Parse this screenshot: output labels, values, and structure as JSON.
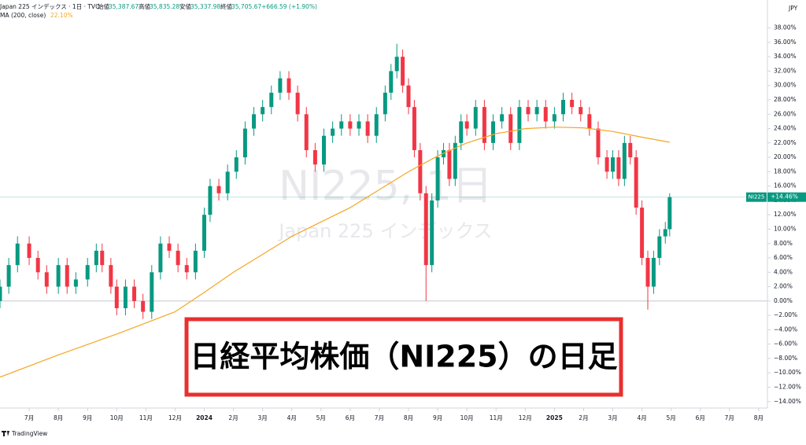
{
  "chart_data": {
    "type": "candlestick",
    "header": {
      "symbol": "Japan 225 インデックス · 1日 · TVC",
      "open_label": "始値",
      "open": "35,387.67",
      "high_label": "高値",
      "high": "35,835.28",
      "low_label": "安値",
      "low": "35,337.98",
      "close_label": "終値",
      "close": "35,705.67",
      "change": "+666.59 (+1.90%)"
    },
    "indicator": {
      "name": "MA (200, close)",
      "value_label": "22.10%",
      "color": "#f5a623",
      "x": [
        0,
        2,
        4,
        6,
        7,
        8,
        9,
        10,
        11,
        12,
        13,
        14,
        15,
        16,
        17,
        18,
        19,
        20,
        21,
        22,
        22.95
      ],
      "values": [
        -10.6,
        -7.5,
        -4.6,
        -1.5,
        1.2,
        4,
        6.5,
        9,
        11,
        13,
        15.5,
        18,
        20.2,
        22,
        23.3,
        24,
        24.2,
        24.1,
        23.6,
        22.8,
        22.1
      ]
    },
    "watermark": "NI225, 1日",
    "watermark_sub": "Japan 225 インデックス",
    "currency": "JPY",
    "price_tag": {
      "name": "NI225",
      "label": "+14.46%",
      "value": 14.46,
      "color": "#089981"
    },
    "banner": "日経平均株価（NI225）の日足",
    "brand": "TradingView",
    "up_color": "#089981",
    "down_color": "#f23645",
    "x": [
      0,
      0.3,
      0.6,
      1,
      1.3,
      1.6,
      2,
      2.3,
      2.6,
      3,
      3.3,
      3.5,
      3.8,
      4,
      4.3,
      4.6,
      4.9,
      5.2,
      5.5,
      5.8,
      6.1,
      6.4,
      6.7,
      7,
      7.2,
      7.5,
      7.8,
      8.1,
      8.4,
      8.7,
      9,
      9.3,
      9.6,
      9.9,
      10.2,
      10.5,
      10.8,
      11.1,
      11.4,
      11.7,
      12,
      12.3,
      12.6,
      12.9,
      13.2,
      13.4,
      13.6,
      13.8,
      14,
      14.2,
      14.4,
      14.6,
      14.8,
      15,
      15.2,
      15.4,
      15.6,
      15.8,
      16,
      16.3,
      16.6,
      16.9,
      17.2,
      17.5,
      17.8,
      18.1,
      18.4,
      18.7,
      19,
      19.3,
      19.6,
      19.9,
      20.2,
      20.5,
      20.8,
      21,
      21.2,
      21.4,
      21.6,
      21.8,
      22,
      22.2,
      22.4,
      22.6,
      22.8,
      22.95
    ],
    "open": [
      0,
      2,
      5,
      8,
      6,
      4,
      2,
      5,
      2,
      3,
      5,
      7,
      5,
      2,
      -1,
      2,
      0,
      -1.5,
      4,
      8,
      7,
      5,
      4,
      7,
      12,
      16,
      15,
      18,
      20,
      24,
      26,
      27,
      29,
      31,
      29,
      26,
      21,
      19,
      23,
      24,
      25,
      24,
      25,
      23,
      26,
      29,
      32,
      34,
      30,
      27,
      21,
      15,
      5,
      14,
      20,
      21,
      17,
      22,
      25,
      24,
      27,
      22,
      25,
      26,
      22,
      27,
      26,
      27,
      25,
      26,
      28,
      27,
      26,
      24,
      20,
      18,
      20,
      17,
      22,
      20,
      13,
      6,
      2,
      6,
      9,
      10
    ],
    "high": [
      3,
      6,
      9,
      9,
      7,
      5,
      6,
      6,
      4,
      6,
      8,
      8,
      6,
      3,
      3,
      3,
      1,
      5,
      9,
      9,
      8,
      6,
      8,
      13,
      17,
      17,
      19,
      21,
      25,
      27,
      28,
      30,
      32,
      32,
      30,
      27,
      22,
      24,
      25,
      26,
      26,
      26,
      26,
      27,
      30,
      33,
      35.8,
      35,
      31,
      28,
      22,
      16,
      15,
      21,
      22,
      22,
      23,
      26,
      26,
      28,
      28,
      26,
      27,
      27,
      28,
      28,
      28,
      28,
      27,
      29,
      29,
      28,
      27,
      25,
      21,
      21,
      21,
      23,
      23,
      21,
      14,
      7,
      7,
      10,
      11,
      15
    ],
    "low": [
      -1,
      1,
      4,
      5,
      3,
      1,
      1,
      1,
      1,
      2,
      4,
      4,
      1,
      -2,
      -2,
      -1,
      -2.5,
      -2.5,
      3,
      6,
      4,
      3,
      3,
      6,
      11,
      14,
      14,
      17,
      19,
      23,
      25,
      26,
      28,
      28,
      25,
      20,
      18,
      18,
      22,
      23,
      23,
      23,
      22,
      22,
      25,
      28,
      31,
      29,
      26,
      20,
      14,
      0,
      4,
      13,
      19,
      16,
      16,
      21,
      23,
      23,
      21,
      21,
      24,
      21,
      21,
      25,
      25,
      24,
      24,
      25,
      26,
      25,
      23,
      19,
      17,
      17,
      16,
      16,
      19,
      12,
      5,
      -1.2,
      1,
      5,
      8,
      9
    ],
    "close": [
      2,
      5,
      8,
      6,
      4,
      2,
      5,
      2,
      3,
      5,
      7,
      5,
      2,
      -1,
      2,
      0,
      -1.5,
      4,
      8,
      7,
      5,
      4,
      7,
      12,
      16,
      15,
      18,
      20,
      24,
      26,
      27,
      29,
      31,
      29,
      26,
      21,
      19,
      23,
      24,
      25,
      24,
      25,
      23,
      26,
      29,
      32,
      34,
      30,
      27,
      21,
      15,
      5,
      14,
      20,
      21,
      17,
      22,
      25,
      24,
      27,
      22,
      25,
      26,
      22,
      27,
      26,
      27,
      25,
      26,
      28,
      27,
      26,
      24,
      20,
      18,
      20,
      17,
      22,
      20,
      13,
      6,
      2,
      6,
      9,
      10,
      14.46
    ],
    "xlim": [
      0,
      26.3
    ],
    "xticks": [
      {
        "value": 1,
        "label": "7月"
      },
      {
        "value": 2,
        "label": "8月"
      },
      {
        "value": 3,
        "label": "9月"
      },
      {
        "value": 4,
        "label": "10月"
      },
      {
        "value": 5,
        "label": "11月"
      },
      {
        "value": 6,
        "label": "12月"
      },
      {
        "value": 7,
        "label": "2024"
      },
      {
        "value": 8,
        "label": "2月"
      },
      {
        "value": 9,
        "label": "3月"
      },
      {
        "value": 10,
        "label": "4月"
      },
      {
        "value": 11,
        "label": "5月"
      },
      {
        "value": 12,
        "label": "6月"
      },
      {
        "value": 13,
        "label": "7月"
      },
      {
        "value": 14,
        "label": "8月"
      },
      {
        "value": 15,
        "label": "9月"
      },
      {
        "value": 16,
        "label": "10月"
      },
      {
        "value": 17,
        "label": "11月"
      },
      {
        "value": 18,
        "label": "12月"
      },
      {
        "value": 19,
        "label": "2025"
      },
      {
        "value": 20,
        "label": "2月"
      },
      {
        "value": 21,
        "label": "3月"
      },
      {
        "value": 22,
        "label": "4月"
      },
      {
        "value": 23,
        "label": "5月"
      },
      {
        "value": 24,
        "label": "6月"
      },
      {
        "value": 25,
        "label": "7月"
      },
      {
        "value": 26,
        "label": "8月"
      }
    ],
    "ylim": [
      -14.9,
      41.9
    ],
    "yticks": [
      {
        "value": 38,
        "label": "38.00%"
      },
      {
        "value": 36,
        "label": "36.00%"
      },
      {
        "value": 34,
        "label": "34.00%"
      },
      {
        "value": 32,
        "label": "32.00%"
      },
      {
        "value": 30,
        "label": "30.00%"
      },
      {
        "value": 28,
        "label": "28.00%"
      },
      {
        "value": 26,
        "label": "26.00%"
      },
      {
        "value": 24,
        "label": "24.00%"
      },
      {
        "value": 22,
        "label": "22.00%"
      },
      {
        "value": 20,
        "label": "20.00%"
      },
      {
        "value": 18,
        "label": "18.00%"
      },
      {
        "value": 16,
        "label": "16.00%"
      },
      {
        "value": 14,
        "label": "14.00%"
      },
      {
        "value": 12,
        "label": "12.00%"
      },
      {
        "value": 10,
        "label": "10.00%"
      },
      {
        "value": 8,
        "label": "8.00%"
      },
      {
        "value": 6,
        "label": "6.00%"
      },
      {
        "value": 4,
        "label": "4.00%"
      },
      {
        "value": 2,
        "label": "2.00%"
      },
      {
        "value": 0,
        "label": "0.00%"
      },
      {
        "value": -2,
        "label": "−2.00%"
      },
      {
        "value": -4,
        "label": "−4.00%"
      },
      {
        "value": -6,
        "label": "−6.00%"
      },
      {
        "value": -8,
        "label": "−8.00%"
      },
      {
        "value": -10,
        "label": "−10.00%"
      },
      {
        "value": -12,
        "label": "−12.00%"
      },
      {
        "value": -14,
        "label": "−14.00%"
      }
    ],
    "baseline": 0
  }
}
